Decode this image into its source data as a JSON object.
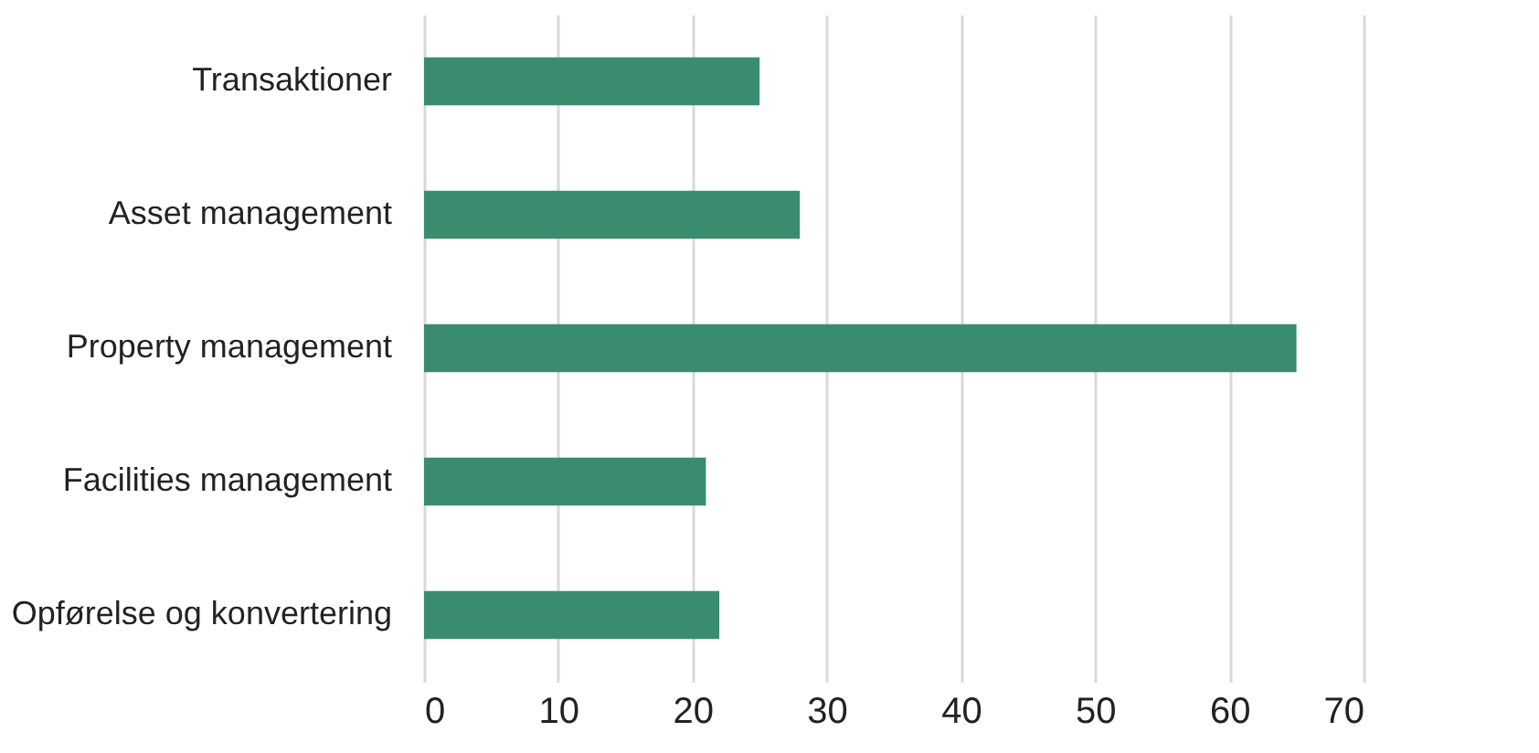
{
  "chart_data": {
    "type": "bar",
    "orientation": "horizontal",
    "categories": [
      "Transaktioner",
      "Asset management",
      "Property management",
      "Facilities management",
      "Opførelse og konvertering"
    ],
    "series": [
      {
        "color": "#3a8c6e",
        "values": [
          25,
          28,
          65,
          21,
          22
        ]
      }
    ],
    "xlim": [
      0,
      70
    ],
    "xticks": [
      0,
      10,
      20,
      30,
      40,
      50,
      60,
      70
    ],
    "grid": "x",
    "legend": false
  }
}
